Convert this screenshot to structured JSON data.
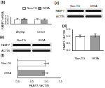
{
  "chart_data": [
    {
      "type": "bar",
      "title": "(b)",
      "y_label": "FABP7 mRNA",
      "categories": [
        "Asymp.",
        "Onset"
      ],
      "series": [
        {
          "name": "Non-TG",
          "color": "#ffffff",
          "values": [
            1.0,
            1.0
          ],
          "errors": [
            0.1,
            0.08
          ]
        },
        {
          "name": "G93A",
          "color": "#9a9a9a",
          "values": [
            1.05,
            0.95
          ],
          "errors": [
            0.12,
            0.1
          ]
        }
      ],
      "ylim": [
        0,
        1.5
      ],
      "yticks": [
        {
          "value": 0,
          "label": "0.0"
        },
        {
          "value": 0.5,
          "label": "0.5"
        },
        {
          "value": 1,
          "label": "1.0"
        },
        {
          "value": 1.5,
          "label": "1.5"
        }
      ],
      "grid": false,
      "legend": "top"
    },
    {
      "type": "bar",
      "title": "(d)",
      "y_label": "FABP7 / ACTIN",
      "categories": [
        "Non-TG",
        "G93A"
      ],
      "values": [
        1.0,
        1.05
      ],
      "errors": [
        0.1,
        0.12
      ],
      "colors": [
        "#ffffff",
        "#9a9a9a"
      ],
      "ylim": [
        0,
        1.5
      ],
      "yticks": [
        {
          "value": 0,
          "label": "0.0"
        },
        {
          "value": 0.5,
          "label": "0.5"
        },
        {
          "value": 1,
          "label": "1.0"
        },
        {
          "value": 1.5,
          "label": "1.5"
        }
      ],
      "grid": false
    },
    {
      "type": "bar",
      "title": "(f)",
      "x_label": "FABP7 / ACTIN",
      "orientation": "horizontal",
      "categories": [
        "Non-TG",
        "G93A"
      ],
      "values": [
        1.0,
        0.95
      ],
      "errors": [
        0.08,
        0.1
      ],
      "colors": [
        "#ffffff",
        "#9a9a9a"
      ],
      "xlim": [
        0,
        1.5
      ],
      "xticks": [
        {
          "value": 0,
          "label": "0.0"
        },
        {
          "value": 0.5,
          "label": "0.5"
        },
        {
          "value": 1,
          "label": "1.0"
        },
        {
          "value": 1.5,
          "label": "1.5"
        }
      ],
      "grid": false
    }
  ],
  "blots": [
    {
      "panel": "(c)",
      "lanes": [
        "Non-TG",
        "G93A"
      ],
      "rows": [
        "FABP7",
        "ACTIN"
      ]
    },
    {
      "panel": "(e)",
      "lanes": [
        "NonTG",
        "G93A"
      ],
      "rows": [
        "FABP7",
        "ACTIN"
      ]
    }
  ]
}
